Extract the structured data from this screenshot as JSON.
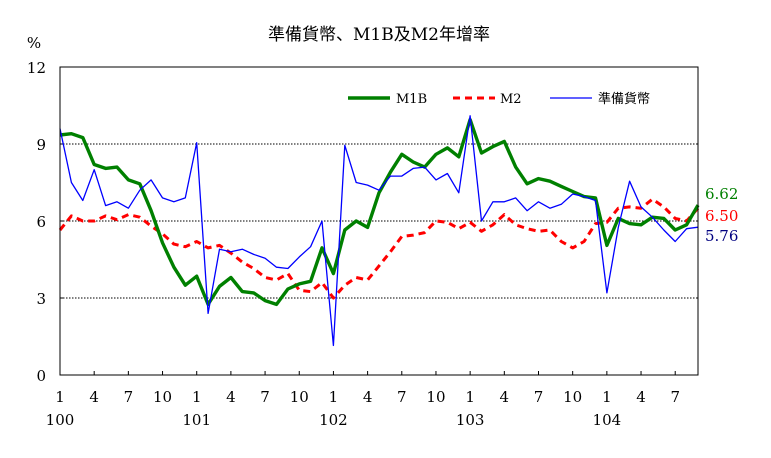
{
  "chart_data": {
    "type": "line",
    "title": "準備貨幣、M1B及M2年增率",
    "ylabel": "%",
    "xlabel": "",
    "ylim": [
      0,
      12
    ],
    "yticks": [
      0,
      3,
      6,
      9,
      12
    ],
    "grid": true,
    "legend_position": "top-right, inside plot",
    "x": [
      "2011-01",
      "2011-02",
      "2011-03",
      "2011-04",
      "2011-05",
      "2011-06",
      "2011-07",
      "2011-08",
      "2011-09",
      "2011-10",
      "2011-11",
      "2011-12",
      "2012-01",
      "2012-02",
      "2012-03",
      "2012-04",
      "2012-05",
      "2012-06",
      "2012-07",
      "2012-08",
      "2012-09",
      "2012-10",
      "2012-11",
      "2012-12",
      "2013-01",
      "2013-02",
      "2013-03",
      "2013-04",
      "2013-05",
      "2013-06",
      "2013-07",
      "2013-08",
      "2013-09",
      "2013-10",
      "2013-11",
      "2013-12",
      "2014-01",
      "2014-02",
      "2014-03",
      "2014-04",
      "2014-05",
      "2014-06",
      "2014-07",
      "2014-08",
      "2014-09",
      "2014-10",
      "2014-11",
      "2014-12",
      "2015-01",
      "2015-02",
      "2015-03",
      "2015-04",
      "2015-05",
      "2015-06",
      "2015-07",
      "2015-08",
      "2015-09"
    ],
    "xtick_labels": [
      {
        "month": "1",
        "year": "100"
      },
      {
        "month": "4",
        "year": ""
      },
      {
        "month": "7",
        "year": ""
      },
      {
        "month": "10",
        "year": ""
      },
      {
        "month": "1",
        "year": "101"
      },
      {
        "month": "4",
        "year": ""
      },
      {
        "month": "7",
        "year": ""
      },
      {
        "month": "10",
        "year": ""
      },
      {
        "month": "1",
        "year": "102"
      },
      {
        "month": "4",
        "year": ""
      },
      {
        "month": "7",
        "year": ""
      },
      {
        "month": "10",
        "year": ""
      },
      {
        "month": "1",
        "year": "103"
      },
      {
        "month": "4",
        "year": ""
      },
      {
        "month": "7",
        "year": ""
      },
      {
        "month": "10",
        "year": ""
      },
      {
        "month": "1",
        "year": "104"
      },
      {
        "month": "4",
        "year": ""
      },
      {
        "month": "7",
        "year": ""
      }
    ],
    "series": [
      {
        "name": "M1B",
        "color": "#008000",
        "style": "solid-thick",
        "values": [
          9.35,
          9.4,
          9.25,
          8.2,
          8.05,
          8.1,
          7.6,
          7.45,
          6.4,
          5.15,
          4.2,
          3.5,
          3.85,
          2.75,
          3.45,
          3.8,
          3.25,
          3.2,
          2.9,
          2.75,
          3.35,
          3.55,
          3.65,
          4.95,
          3.95,
          5.65,
          6.0,
          5.75,
          7.1,
          7.9,
          8.6,
          8.3,
          8.1,
          8.6,
          8.85,
          8.5,
          9.95,
          8.65,
          8.9,
          9.1,
          8.1,
          7.45,
          7.65,
          7.55,
          7.35,
          7.15,
          6.95,
          6.9,
          5.05,
          6.1,
          5.9,
          5.85,
          6.15,
          6.1,
          5.65,
          5.85,
          6.62
        ]
      },
      {
        "name": "M2",
        "color": "#ff0000",
        "style": "dashed",
        "values": [
          5.65,
          6.2,
          6.0,
          6.0,
          6.2,
          6.05,
          6.25,
          6.15,
          5.8,
          5.5,
          5.1,
          5.0,
          5.2,
          4.95,
          5.05,
          4.75,
          4.4,
          4.15,
          3.8,
          3.7,
          3.95,
          3.3,
          3.25,
          3.6,
          3.0,
          3.5,
          3.8,
          3.7,
          4.25,
          4.8,
          5.4,
          5.45,
          5.55,
          6.0,
          5.95,
          5.7,
          5.95,
          5.6,
          5.85,
          6.25,
          5.85,
          5.7,
          5.6,
          5.65,
          5.2,
          4.95,
          5.2,
          5.9,
          5.95,
          6.5,
          6.55,
          6.5,
          6.85,
          6.55,
          6.1,
          6.0,
          6.5
        ]
      },
      {
        "name": "準備貨幣",
        "color": "#0000ff",
        "style": "solid-thin",
        "values": [
          9.6,
          7.5,
          6.8,
          8.0,
          6.6,
          6.75,
          6.5,
          7.2,
          7.6,
          6.9,
          6.75,
          6.9,
          9.05,
          2.4,
          4.9,
          4.8,
          4.9,
          4.7,
          4.55,
          4.2,
          4.15,
          4.6,
          5.0,
          6.0,
          1.15,
          8.95,
          7.5,
          7.4,
          7.2,
          7.75,
          7.75,
          8.05,
          8.1,
          7.6,
          7.85,
          7.1,
          10.1,
          6.0,
          6.75,
          6.75,
          6.9,
          6.4,
          6.75,
          6.5,
          6.65,
          7.05,
          6.95,
          6.8,
          3.2,
          5.75,
          7.55,
          6.55,
          6.15,
          5.65,
          5.2,
          5.7,
          5.76
        ]
      }
    ],
    "end_labels": [
      {
        "text": "6.62",
        "color": "#008000"
      },
      {
        "text": "6.50",
        "color": "#ff0000"
      },
      {
        "text": "5.76",
        "color": "#000080"
      }
    ]
  }
}
